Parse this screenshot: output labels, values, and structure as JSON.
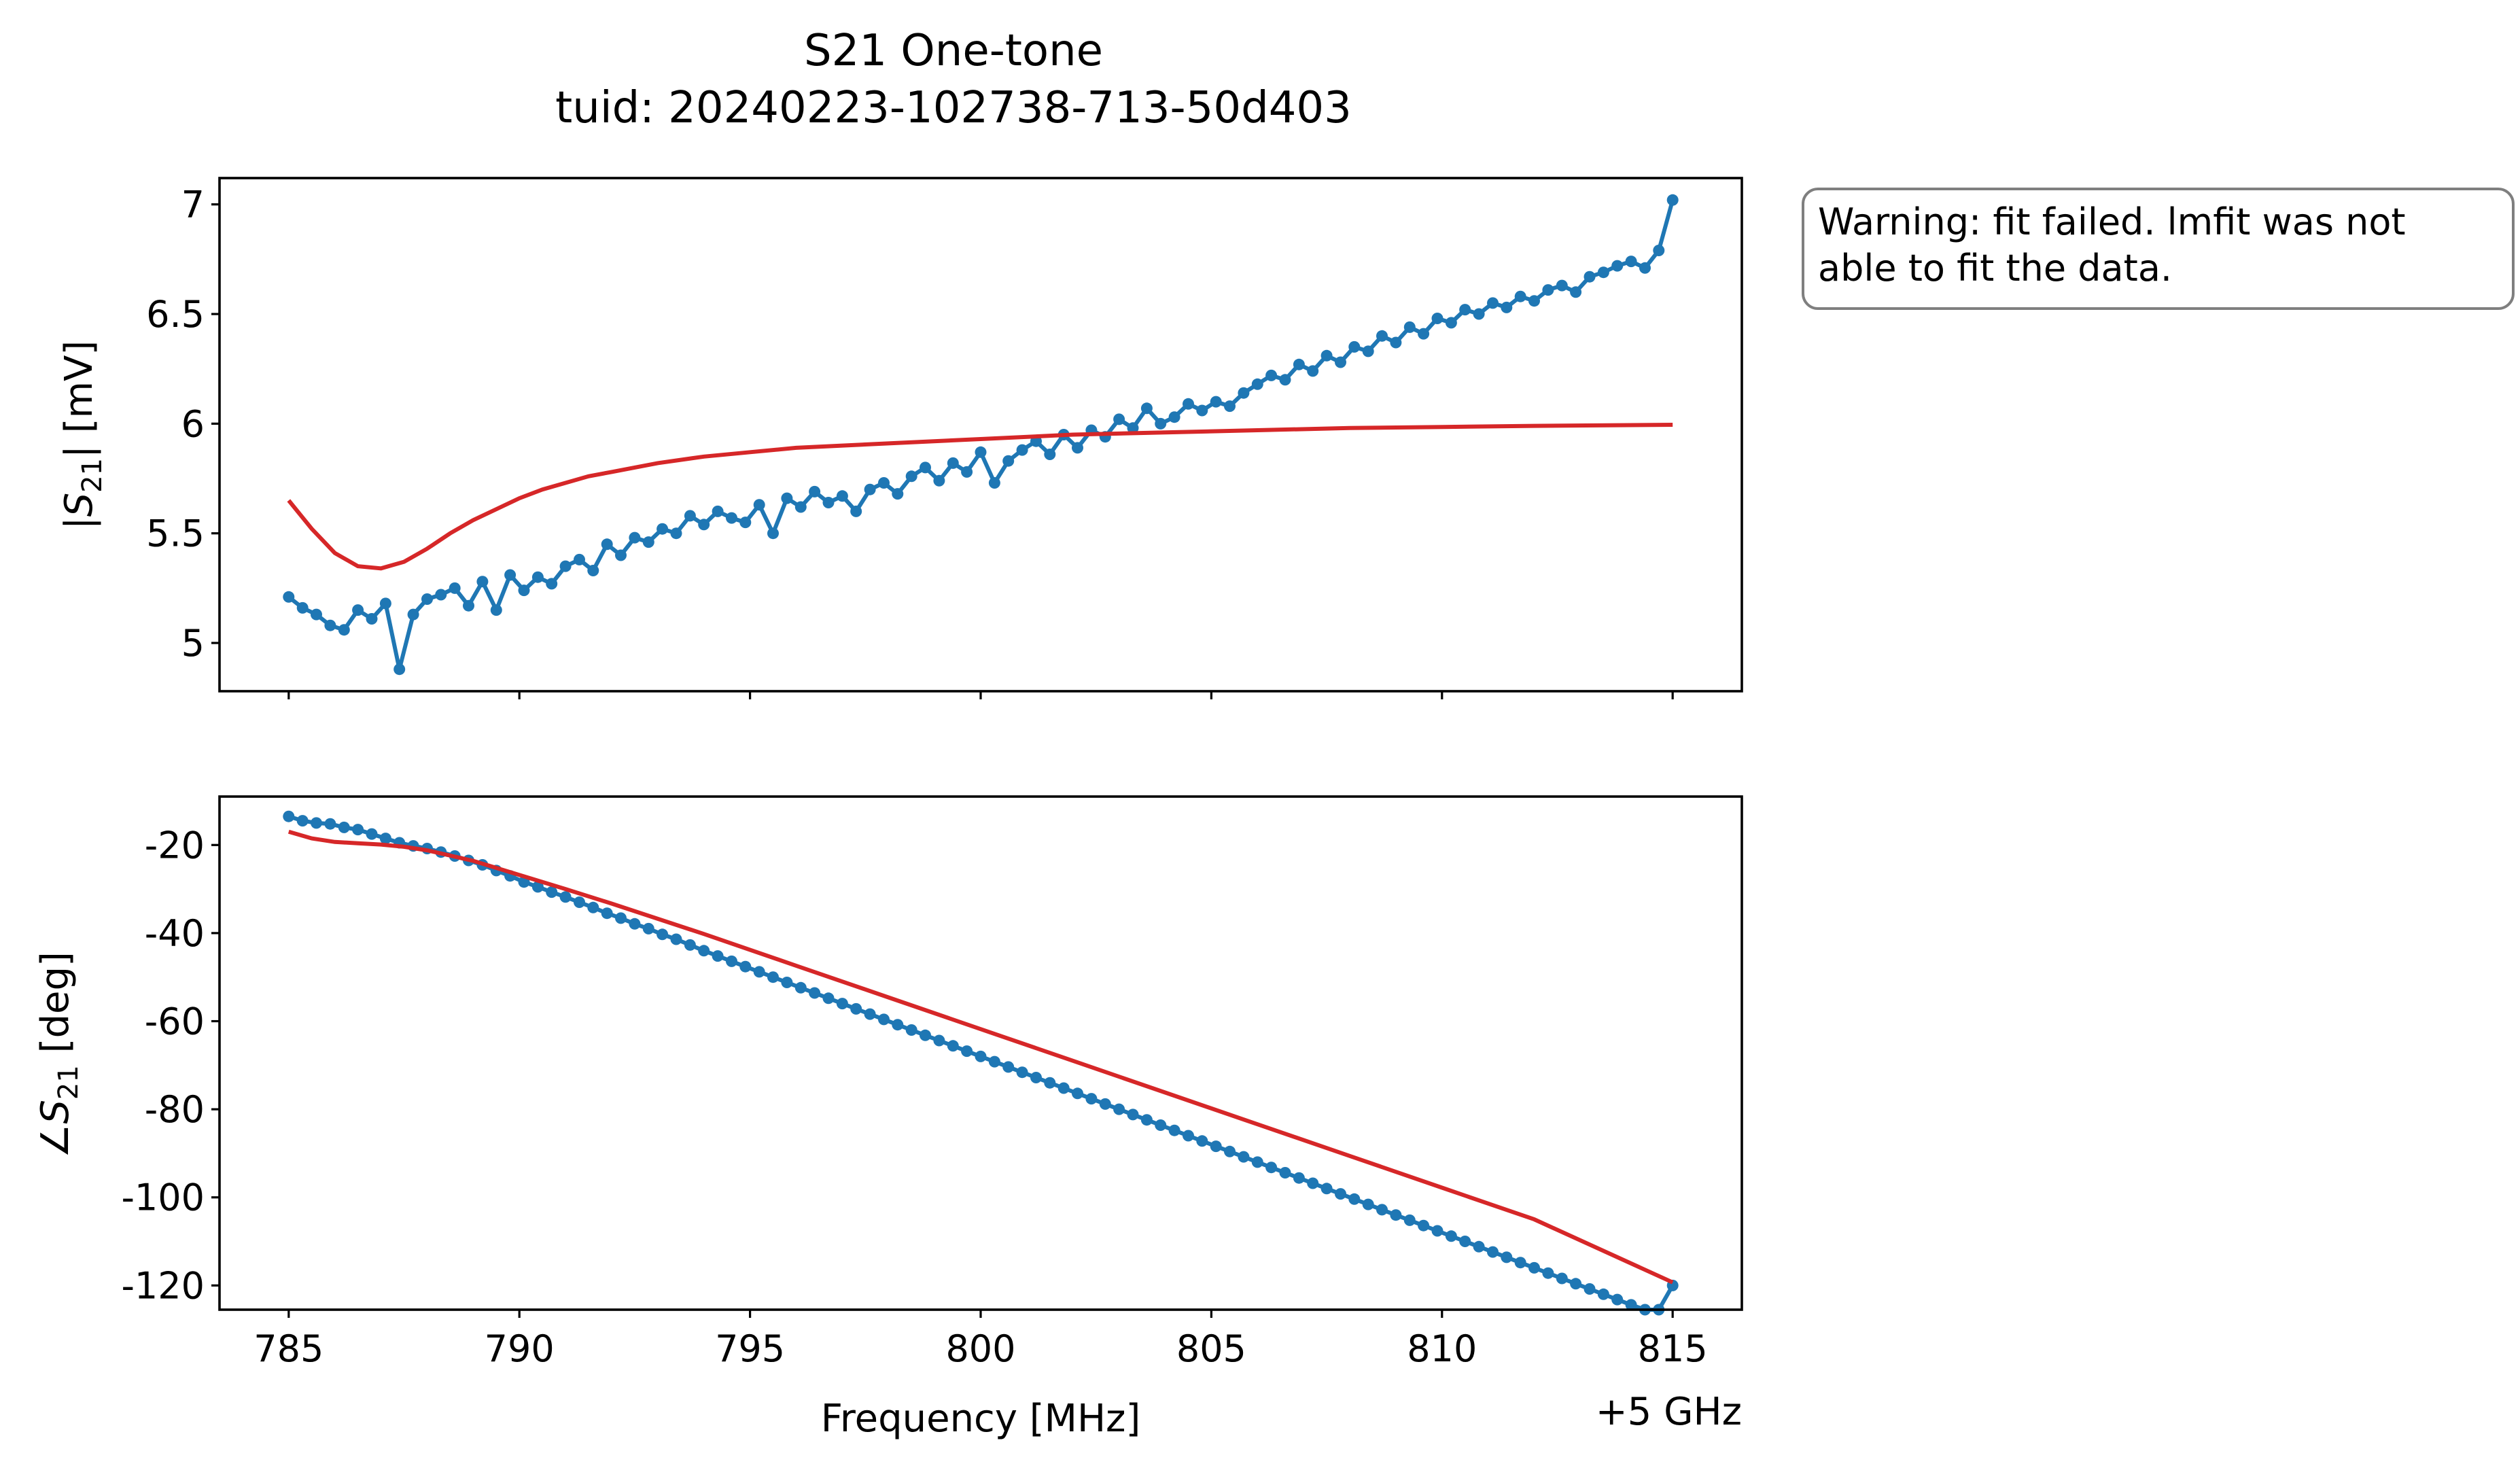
{
  "title": {
    "line1": "S21 One-tone",
    "line2": "tuid: 20240223-102738-713-50d403"
  },
  "warning": {
    "line1": "Warning: fit failed. lmfit was not",
    "line2": "able to fit the data."
  },
  "colors": {
    "measured": "#1f77b4",
    "fit": "#d62728"
  },
  "chart_data": [
    {
      "type": "line",
      "panel": "top",
      "ylabel": "|S21| [mV]",
      "ylim": [
        4.78,
        7.12
      ],
      "yticks": [
        5,
        5.5,
        6,
        6.5,
        7
      ],
      "ytick_labels": [
        "5",
        "5.5",
        "6",
        "6.5",
        "7"
      ],
      "x_shared": true,
      "xlim": [
        783.5,
        816.5
      ],
      "grid": false,
      "series": [
        {
          "marker": "circle",
          "color": "#1f77b4",
          "x": [
            785.0,
            785.3,
            785.6,
            785.9,
            786.2,
            786.5,
            786.8,
            787.1,
            787.4,
            787.7,
            788.0,
            788.3,
            788.6,
            788.9,
            789.2,
            789.5,
            789.8,
            790.1,
            790.4,
            790.7,
            791.0,
            791.3,
            791.6,
            791.9,
            792.2,
            792.5,
            792.8,
            793.1,
            793.4,
            793.7,
            794.0,
            794.3,
            794.6,
            794.9,
            795.2,
            795.5,
            795.8,
            796.1,
            796.4,
            796.7,
            797.0,
            797.3,
            797.6,
            797.9,
            798.2,
            798.5,
            798.8,
            799.1,
            799.4,
            799.7,
            800.0,
            800.3,
            800.6,
            800.9,
            801.2,
            801.5,
            801.8,
            802.1,
            802.4,
            802.7,
            803.0,
            803.3,
            803.6,
            803.9,
            804.2,
            804.5,
            804.8,
            805.1,
            805.4,
            805.7,
            806.0,
            806.3,
            806.6,
            806.9,
            807.2,
            807.5,
            807.8,
            808.1,
            808.4,
            808.7,
            809.0,
            809.3,
            809.6,
            809.9,
            810.2,
            810.5,
            810.8,
            811.1,
            811.4,
            811.7,
            812.0,
            812.3,
            812.6,
            812.9,
            813.2,
            813.5,
            813.8,
            814.1,
            814.4,
            814.7,
            815.0
          ],
          "y": [
            5.21,
            5.16,
            5.13,
            5.08,
            5.06,
            5.15,
            5.11,
            5.18,
            4.88,
            5.13,
            5.2,
            5.22,
            5.25,
            5.17,
            5.28,
            5.15,
            5.31,
            5.24,
            5.3,
            5.27,
            5.35,
            5.38,
            5.33,
            5.45,
            5.4,
            5.48,
            5.46,
            5.52,
            5.5,
            5.58,
            5.54,
            5.6,
            5.57,
            5.55,
            5.63,
            5.5,
            5.66,
            5.62,
            5.69,
            5.64,
            5.67,
            5.6,
            5.7,
            5.73,
            5.68,
            5.76,
            5.8,
            5.74,
            5.82,
            5.78,
            5.87,
            5.73,
            5.83,
            5.88,
            5.92,
            5.86,
            5.95,
            5.89,
            5.97,
            5.94,
            6.02,
            5.98,
            6.07,
            6.0,
            6.03,
            6.09,
            6.06,
            6.1,
            6.08,
            6.14,
            6.18,
            6.22,
            6.2,
            6.27,
            6.24,
            6.31,
            6.28,
            6.35,
            6.33,
            6.4,
            6.37,
            6.44,
            6.41,
            6.48,
            6.46,
            6.52,
            6.5,
            6.55,
            6.53,
            6.58,
            6.56,
            6.61,
            6.63,
            6.6,
            6.67,
            6.69,
            6.72,
            6.74,
            6.71,
            6.79,
            7.02
          ]
        },
        {
          "color": "#d62728",
          "x": [
            785.0,
            785.5,
            786.0,
            786.5,
            787.0,
            787.5,
            788.0,
            788.5,
            789.0,
            789.5,
            790.0,
            790.5,
            791.0,
            791.5,
            792.0,
            792.5,
            793.0,
            794.0,
            795.0,
            796.0,
            797.0,
            798.0,
            800.0,
            802.0,
            804.0,
            806.0,
            808.0,
            810.0,
            812.0,
            815.0
          ],
          "y": [
            5.65,
            5.52,
            5.41,
            5.35,
            5.34,
            5.37,
            5.43,
            5.5,
            5.56,
            5.61,
            5.66,
            5.7,
            5.73,
            5.76,
            5.78,
            5.8,
            5.82,
            5.85,
            5.87,
            5.89,
            5.9,
            5.91,
            5.93,
            5.95,
            5.96,
            5.97,
            5.98,
            5.985,
            5.99,
            5.995
          ]
        }
      ]
    },
    {
      "type": "line",
      "panel": "bottom",
      "ylabel": "∠S21 [deg]",
      "xlabel": "Frequency [MHz]",
      "x_offset_label": "+5 GHz",
      "ylim": [
        -125.5,
        -9
      ],
      "yticks": [
        -20,
        -40,
        -60,
        -80,
        -100,
        -120
      ],
      "ytick_labels": [
        "-20",
        "-40",
        "-60",
        "-80",
        "-100",
        "-120"
      ],
      "xlim": [
        783.5,
        816.5
      ],
      "xticks": [
        785,
        790,
        795,
        800,
        805,
        810,
        815
      ],
      "xtick_labels": [
        "785",
        "790",
        "795",
        "800",
        "805",
        "810",
        "815"
      ],
      "grid": false,
      "series": [
        {
          "marker": "circle",
          "color": "#1f77b4",
          "x": [
            785.0,
            785.3,
            785.6,
            785.9,
            786.2,
            786.5,
            786.8,
            787.1,
            787.4,
            787.7,
            788.0,
            788.3,
            788.6,
            788.9,
            789.2,
            789.5,
            789.8,
            790.1,
            790.4,
            790.7,
            791.0,
            791.3,
            791.6,
            791.9,
            792.2,
            792.5,
            792.8,
            793.1,
            793.4,
            793.7,
            794.0,
            794.3,
            794.6,
            794.9,
            795.2,
            795.5,
            795.8,
            796.1,
            796.4,
            796.7,
            797.0,
            797.3,
            797.6,
            797.9,
            798.2,
            798.5,
            798.8,
            799.1,
            799.4,
            799.7,
            800.0,
            800.3,
            800.6,
            800.9,
            801.2,
            801.5,
            801.8,
            802.1,
            802.4,
            802.7,
            803.0,
            803.3,
            803.6,
            803.9,
            804.2,
            804.5,
            804.8,
            805.1,
            805.4,
            805.7,
            806.0,
            806.3,
            806.6,
            806.9,
            807.2,
            807.5,
            807.8,
            808.1,
            808.4,
            808.7,
            809.0,
            809.3,
            809.6,
            809.9,
            810.2,
            810.5,
            810.8,
            811.1,
            811.4,
            811.7,
            812.0,
            812.3,
            812.6,
            812.9,
            813.2,
            813.5,
            813.8,
            814.1,
            814.4,
            814.7,
            815.0
          ],
          "y": [
            -13.5,
            -14.5,
            -15.0,
            -15.2,
            -16.0,
            -16.5,
            -17.5,
            -18.5,
            -19.5,
            -20.2,
            -20.8,
            -21.6,
            -22.5,
            -23.5,
            -24.5,
            -25.8,
            -27.0,
            -28.4,
            -29.5,
            -30.7,
            -31.8,
            -33.0,
            -34.2,
            -35.5,
            -36.6,
            -37.9,
            -39.0,
            -40.3,
            -41.4,
            -42.7,
            -44.0,
            -45.2,
            -46.4,
            -47.6,
            -48.8,
            -50.0,
            -51.2,
            -52.4,
            -53.6,
            -54.8,
            -56.0,
            -57.2,
            -58.4,
            -59.6,
            -60.8,
            -62.0,
            -63.2,
            -64.4,
            -65.6,
            -66.8,
            -68.0,
            -69.2,
            -70.4,
            -71.6,
            -72.8,
            -74.0,
            -75.2,
            -76.4,
            -77.6,
            -78.8,
            -80.0,
            -81.2,
            -82.4,
            -83.6,
            -84.8,
            -86.0,
            -87.2,
            -88.4,
            -89.6,
            -90.8,
            -92.0,
            -93.2,
            -94.4,
            -95.6,
            -96.8,
            -98.0,
            -99.2,
            -100.4,
            -101.6,
            -102.8,
            -104.0,
            -105.2,
            -106.4,
            -107.6,
            -108.8,
            -110.0,
            -111.2,
            -112.4,
            -113.6,
            -114.8,
            -116.0,
            -117.2,
            -118.4,
            -119.6,
            -120.8,
            -122.0,
            -123.2,
            -124.4,
            -125.6,
            -126.8,
            -120.0
          ]
        },
        {
          "color": "#d62728",
          "x": [
            785.0,
            785.5,
            786.0,
            786.5,
            787.0,
            787.5,
            788.0,
            789.0,
            790.0,
            791.0,
            792.0,
            794.0,
            796.0,
            798.0,
            800.0,
            802.0,
            804.0,
            806.0,
            808.0,
            810.0,
            812.0,
            815.0
          ],
          "y": [
            -17.0,
            -18.5,
            -19.3,
            -19.6,
            -19.9,
            -20.4,
            -21.2,
            -23.6,
            -26.8,
            -30.0,
            -33.3,
            -40.2,
            -47.4,
            -54.6,
            -61.8,
            -69.0,
            -76.2,
            -83.4,
            -90.6,
            -97.8,
            -105.0,
            -119.3
          ]
        }
      ]
    }
  ]
}
